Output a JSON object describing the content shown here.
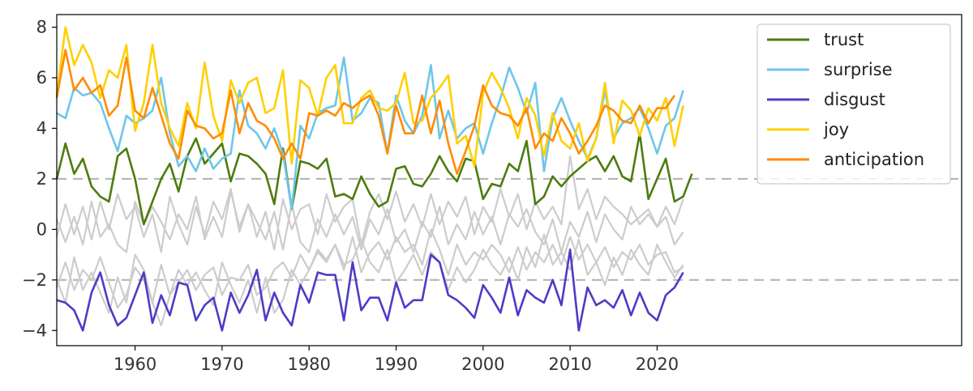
{
  "chart_data": {
    "type": "line",
    "title": "",
    "xlabel": "",
    "ylabel": "",
    "xlim": [
      1951,
      2055
    ],
    "ylim": [
      -4.6,
      8.5
    ],
    "x_ticks": [
      1960,
      1970,
      1980,
      1990,
      2000,
      2010,
      2020
    ],
    "y_ticks": [
      -4,
      -2,
      0,
      2,
      4,
      6,
      8
    ],
    "grid": false,
    "legend_position": "top-right",
    "reference_lines": [
      {
        "y": 2,
        "style": "dashed",
        "color": "#b5b5b5"
      },
      {
        "y": -2,
        "style": "dashed",
        "color": "#b5b5b5"
      }
    ],
    "x_start": 1951,
    "x_step": 1,
    "series": [
      {
        "name": "trust",
        "color": "#4d7c0f",
        "values": [
          2.0,
          3.4,
          2.2,
          2.8,
          1.7,
          1.3,
          1.1,
          2.9,
          3.2,
          2.0,
          0.2,
          1.1,
          2.0,
          2.6,
          1.5,
          2.9,
          3.6,
          2.6,
          3.0,
          3.4,
          1.9,
          3.0,
          2.9,
          2.6,
          2.2,
          1.0,
          3.2,
          0.8,
          2.7,
          2.6,
          2.4,
          2.8,
          1.3,
          1.4,
          1.2,
          2.1,
          1.4,
          0.9,
          1.1,
          2.4,
          2.5,
          1.8,
          1.7,
          2.2,
          2.9,
          2.3,
          1.9,
          2.8,
          2.7,
          1.2,
          1.8,
          1.7,
          2.6,
          2.3,
          3.5,
          1.0,
          1.3,
          2.1,
          1.7,
          2.1,
          2.4,
          2.7,
          2.9,
          2.3,
          2.9,
          2.1,
          1.9,
          3.8,
          1.2,
          2.0,
          2.8,
          1.1,
          1.3,
          2.2
        ]
      },
      {
        "name": "surprise",
        "color": "#6ec6e8",
        "values": [
          4.6,
          4.4,
          5.6,
          5.3,
          5.4,
          5.0,
          4.0,
          3.1,
          4.5,
          4.2,
          4.4,
          4.7,
          6.0,
          3.8,
          2.5,
          2.9,
          2.3,
          3.2,
          2.4,
          2.8,
          3.0,
          5.5,
          4.1,
          3.8,
          3.2,
          4.0,
          3.0,
          0.8,
          4.1,
          3.6,
          4.6,
          4.8,
          4.9,
          6.8,
          4.3,
          4.6,
          5.2,
          5.0,
          3.0,
          5.3,
          4.3,
          3.8,
          4.5,
          6.5,
          3.6,
          4.7,
          3.6,
          4.0,
          4.2,
          3.0,
          4.2,
          5.2,
          6.4,
          5.6,
          4.6,
          5.8,
          2.3,
          4.4,
          5.2,
          4.3,
          3.5,
          2.8,
          3.6,
          5.5,
          3.6,
          4.2,
          4.4,
          4.8,
          4.0,
          3.0,
          4.1,
          4.4,
          5.5
        ]
      },
      {
        "name": "disgust",
        "color": "#4c3cc6",
        "values": [
          -2.8,
          -2.9,
          -3.2,
          -4.0,
          -2.5,
          -1.7,
          -3.0,
          -3.8,
          -3.5,
          -2.6,
          -1.7,
          -3.7,
          -2.6,
          -3.4,
          -2.1,
          -2.2,
          -3.6,
          -3.0,
          -2.7,
          -4.0,
          -2.5,
          -3.3,
          -2.6,
          -1.6,
          -3.6,
          -2.5,
          -3.3,
          -3.8,
          -2.2,
          -2.9,
          -1.7,
          -1.8,
          -1.8,
          -3.6,
          -1.3,
          -3.2,
          -2.7,
          -2.7,
          -3.6,
          -2.1,
          -3.1,
          -2.8,
          -2.8,
          -1.0,
          -1.3,
          -2.6,
          -2.8,
          -3.1,
          -3.5,
          -2.2,
          -2.7,
          -3.3,
          -1.9,
          -3.4,
          -2.4,
          -2.7,
          -2.9,
          -2.0,
          -3.0,
          -0.8,
          -4.0,
          -2.3,
          -3.0,
          -2.8,
          -3.1,
          -2.4,
          -3.4,
          -2.5,
          -3.3,
          -3.6,
          -2.6,
          -2.3,
          -1.7
        ]
      },
      {
        "name": "joy",
        "color": "#ffd000",
        "values": [
          5.3,
          8.0,
          6.5,
          7.3,
          6.6,
          5.2,
          6.3,
          6.0,
          7.3,
          3.9,
          5.0,
          7.3,
          5.0,
          4.0,
          3.3,
          5.0,
          4.0,
          6.6,
          4.5,
          3.5,
          5.9,
          5.0,
          5.8,
          6.0,
          4.6,
          4.8,
          6.3,
          2.6,
          5.9,
          5.6,
          4.5,
          6.0,
          6.5,
          4.2,
          4.2,
          5.2,
          5.5,
          4.8,
          4.7,
          5.0,
          6.2,
          4.2,
          4.3,
          5.2,
          5.6,
          6.1,
          3.4,
          3.7,
          2.5,
          5.4,
          6.2,
          5.6,
          4.8,
          3.6,
          5.2,
          4.5,
          2.9,
          4.6,
          3.5,
          3.2,
          4.2,
          2.7,
          3.6,
          5.8,
          3.4,
          5.1,
          4.7,
          3.7,
          4.8,
          4.3,
          5.2,
          3.3,
          4.9
        ]
      },
      {
        "name": "anticipation",
        "color": "#ff8c00",
        "values": [
          5.2,
          7.1,
          5.5,
          6.0,
          5.4,
          5.7,
          4.5,
          4.9,
          6.8,
          4.7,
          4.4,
          5.6,
          4.5,
          3.4,
          2.8,
          4.7,
          4.1,
          4.0,
          3.6,
          3.8,
          5.5,
          3.8,
          5.0,
          4.3,
          4.1,
          3.6,
          2.8,
          3.4,
          2.8,
          4.6,
          4.5,
          4.7,
          4.5,
          5.0,
          4.8,
          5.1,
          5.3,
          4.5,
          3.0,
          4.9,
          3.8,
          3.8,
          5.3,
          3.8,
          5.1,
          3.4,
          2.2,
          3.1,
          4.1,
          5.7,
          4.9,
          4.6,
          4.5,
          4.1,
          4.8,
          3.2,
          3.8,
          3.5,
          4.4,
          3.8,
          3.0,
          3.5,
          4.1,
          4.9,
          4.7,
          4.3,
          4.2,
          4.9,
          4.2,
          4.8,
          4.8,
          5.3
        ]
      },
      {
        "name": "",
        "color": "#cccccc",
        "values": [
          0.4,
          -0.5,
          0.5,
          -0.6,
          1.1,
          -0.3,
          0.2,
          -0.6,
          -0.9,
          1.1,
          0.2,
          0.9,
          0.3,
          -0.4,
          0.6,
          0.0,
          1.3,
          -0.4,
          0.5,
          -0.3,
          1.5,
          0.1,
          1.0,
          -0.3,
          0.7,
          -0.8,
          1.2,
          0.0,
          0.8,
          1.0,
          -0.2,
          1.4,
          0.3,
          0.9,
          1.2,
          -0.6,
          0.7,
          1.4,
          0.4,
          1.5,
          0.3,
          1.0,
          0.1,
          1.4,
          0.2,
          1.1,
          0.5,
          1.3,
          -0.2,
          0.9,
          0.3,
          1.6,
          0.5,
          1.4,
          0.0,
          1.1,
          0.4,
          0.9,
          0.2,
          2.9,
          0.8,
          1.6,
          0.4,
          1.3,
          0.9,
          0.6,
          0.2,
          0.5,
          0.8,
          0.1,
          0.9,
          0.2,
          1.2
        ]
      },
      {
        "name": "",
        "color": "#cccccc",
        "values": [
          -2.3,
          -1.3,
          -2.4,
          -1.6,
          -2.0,
          -1.1,
          -2.1,
          -3.1,
          -2.6,
          -1.5,
          -2.0,
          -2.9,
          -1.4,
          -2.6,
          -2.1,
          -1.6,
          -2.4,
          -1.8,
          -1.5,
          -2.6,
          -1.9,
          -2.0,
          -1.4,
          -2.6,
          -2.3,
          -1.6,
          -1.3,
          -1.9,
          -1.0,
          -1.6,
          -0.9,
          -1.3,
          -0.6,
          -1.6,
          -0.3,
          -1.7,
          -0.9,
          -0.5,
          -1.2,
          -0.3,
          -0.9,
          -0.6,
          -1.4,
          0.0,
          -0.8,
          -1.8,
          -0.6,
          -1.4,
          -0.9,
          -1.2,
          -0.6,
          -1.0,
          -1.7,
          -0.7,
          -1.6,
          -0.9,
          -1.3,
          -0.6,
          -1.4,
          -0.3,
          -1.2,
          -0.6,
          -1.3,
          -0.7,
          -1.5,
          -0.9,
          -1.2,
          -0.6,
          -1.4,
          -1.0,
          -0.9,
          -1.7,
          -1.5
        ]
      },
      {
        "name": "",
        "color": "#cccccc",
        "values": [
          -2.0,
          -2.9,
          -1.1,
          -2.4,
          -1.7,
          -2.5,
          -3.3,
          -1.9,
          -2.9,
          -1.0,
          -1.6,
          -2.9,
          -3.8,
          -2.6,
          -1.6,
          -2.2,
          -1.7,
          -2.4,
          -3.0,
          -1.3,
          -2.2,
          -2.9,
          -2.0,
          -3.3,
          -1.9,
          -3.3,
          -2.8,
          -1.6,
          -2.2,
          -1.6,
          -0.8,
          -1.2,
          -0.6,
          -1.4,
          -1.2,
          -0.4,
          -1.3,
          -1.7,
          -0.8,
          -2.1,
          -1.6,
          -1.0,
          -1.8,
          -0.9,
          -1.3,
          -2.4,
          -1.5,
          -2.1,
          -1.6,
          -0.8,
          -1.4,
          -1.8,
          -1.1,
          -2.0,
          -0.7,
          -1.5,
          -0.2,
          -1.4,
          -0.9,
          -1.6,
          -0.4,
          -1.8,
          -1.3,
          -2.2,
          -1.1,
          -1.8,
          -0.8,
          -1.4,
          -1.8,
          -0.6,
          -1.3,
          -1.9,
          -1.4
        ]
      },
      {
        "name": "",
        "color": "#cccccc",
        "values": [
          -0.3,
          1.0,
          -0.2,
          0.9,
          -0.4,
          1.1,
          0.0,
          1.4,
          0.4,
          0.9,
          -0.3,
          0.6,
          -0.9,
          1.3,
          0.2,
          -0.6,
          0.9,
          -0.2,
          1.1,
          0.4,
          1.6,
          -0.1,
          1.0,
          0.3,
          -0.4,
          0.7,
          -0.8,
          1.0,
          -0.5,
          -0.9,
          0.4,
          -0.3,
          0.6,
          -0.2,
          0.5,
          -0.8,
          0.4,
          -0.2,
          0.8,
          -0.5,
          0.0,
          -0.9,
          0.3,
          -0.3,
          0.9,
          -0.6,
          0.2,
          -0.4,
          0.7,
          -0.2,
          0.5,
          -0.6,
          0.6,
          0.1,
          0.8,
          -0.1,
          -0.6,
          0.4,
          -0.9,
          0.3,
          -0.3,
          0.7,
          -0.5,
          0.6,
          0.0,
          -0.4,
          0.9,
          0.2,
          0.6,
          0.1,
          0.5,
          -0.6,
          -0.1
        ]
      }
    ]
  }
}
